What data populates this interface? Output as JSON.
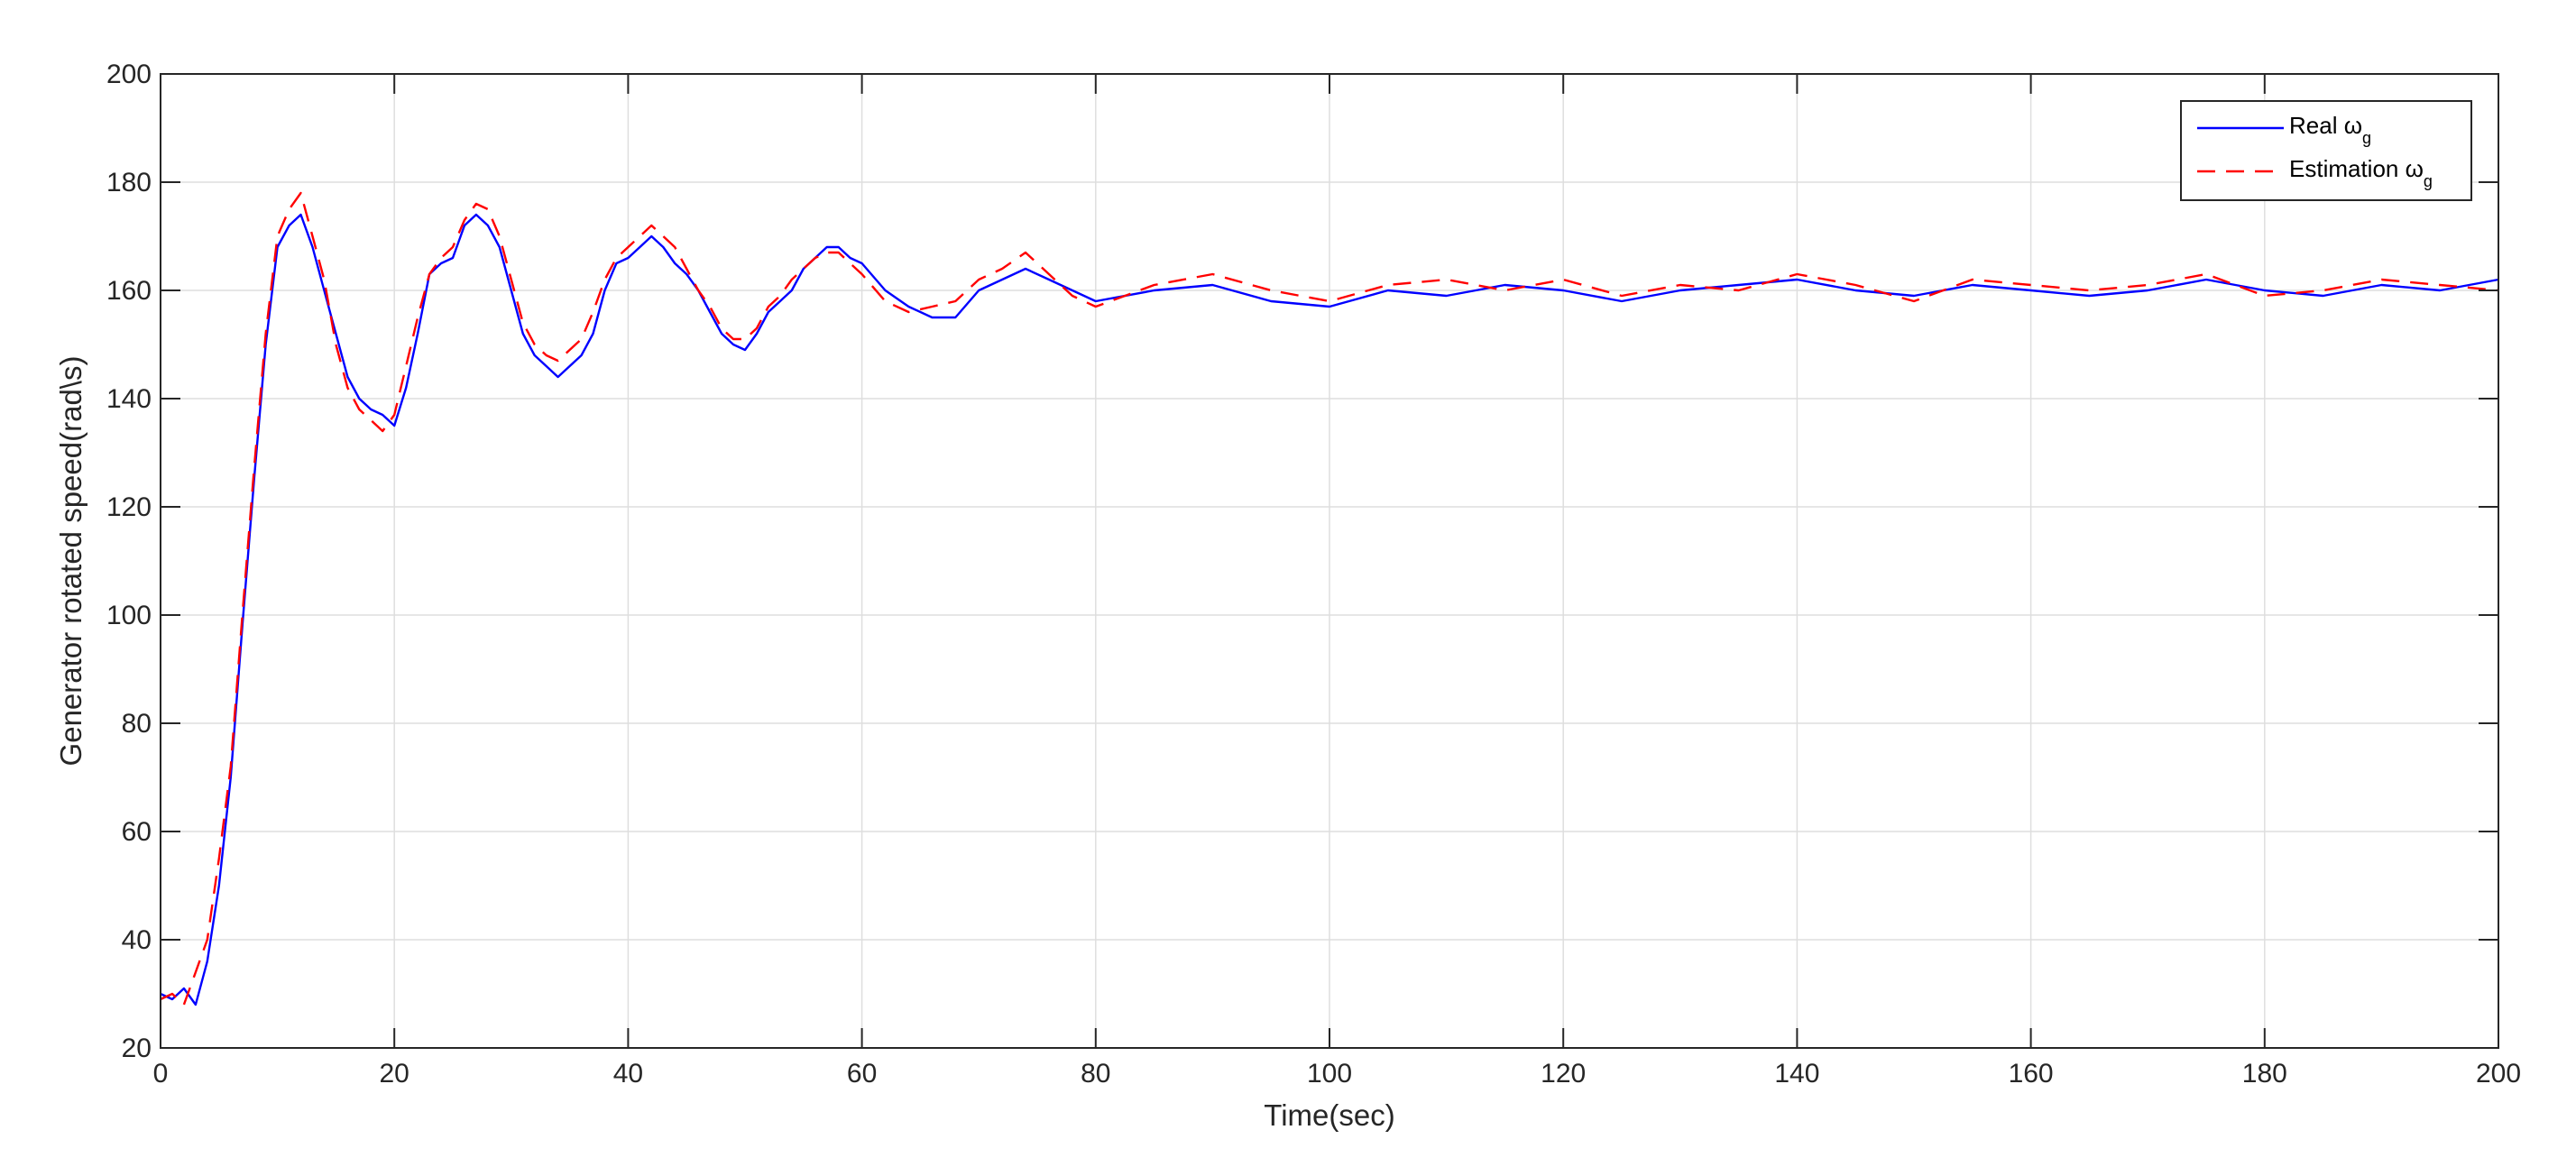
{
  "chart_data": {
    "type": "line",
    "xlabel": "Time(sec)",
    "ylabel": "Generator rotated speed(rad\\s)",
    "xlim": [
      0,
      200
    ],
    "ylim": [
      20,
      200
    ],
    "xticks": [
      0,
      20,
      40,
      60,
      80,
      100,
      120,
      140,
      160,
      180,
      200
    ],
    "yticks": [
      20,
      40,
      60,
      80,
      100,
      120,
      140,
      160,
      180,
      200
    ],
    "grid": true,
    "legend_position": "top-right",
    "series": [
      {
        "name": "Real ωg",
        "legend_main": "Real ω",
        "legend_sub": "g",
        "color": "#0000ff",
        "style": "solid",
        "x": [
          0,
          1,
          2,
          3,
          4,
          5,
          6,
          7,
          8,
          9,
          10,
          11,
          12,
          13,
          14,
          15,
          16,
          17,
          18,
          19,
          20,
          21,
          22,
          23,
          24,
          25,
          26,
          27,
          28,
          29,
          30,
          31,
          32,
          33,
          34,
          35,
          36,
          37,
          38,
          39,
          40,
          41,
          42,
          43,
          44,
          45,
          46,
          47,
          48,
          49,
          50,
          51,
          52,
          53,
          54,
          55,
          56,
          57,
          58,
          59,
          60,
          62,
          64,
          66,
          68,
          70,
          72,
          74,
          76,
          78,
          80,
          85,
          90,
          95,
          100,
          105,
          110,
          115,
          120,
          125,
          130,
          135,
          140,
          145,
          150,
          155,
          160,
          165,
          170,
          175,
          180,
          185,
          190,
          195,
          200
        ],
        "y": [
          30,
          29,
          31,
          28,
          36,
          50,
          70,
          98,
          125,
          150,
          168,
          172,
          174,
          168,
          160,
          152,
          144,
          140,
          138,
          137,
          135,
          142,
          152,
          163,
          165,
          166,
          172,
          174,
          172,
          168,
          160,
          152,
          148,
          146,
          144,
          146,
          148,
          152,
          160,
          165,
          166,
          168,
          170,
          168,
          165,
          163,
          160,
          156,
          152,
          150,
          149,
          152,
          156,
          158,
          160,
          164,
          166,
          168,
          168,
          166,
          165,
          160,
          157,
          155,
          155,
          160,
          162,
          164,
          162,
          160,
          158,
          160,
          161,
          158,
          157,
          160,
          159,
          161,
          160,
          158,
          160,
          161,
          162,
          160,
          159,
          161,
          160,
          159,
          160,
          162,
          160,
          159,
          161,
          160,
          162
        ]
      },
      {
        "name": "Estimation ωg",
        "legend_main": "Estimation ω",
        "legend_sub": "g",
        "color": "#ff0000",
        "style": "dashed",
        "x": [
          0,
          1,
          2,
          3,
          4,
          5,
          6,
          7,
          8,
          9,
          10,
          11,
          12,
          13,
          14,
          15,
          16,
          17,
          18,
          19,
          20,
          21,
          22,
          23,
          24,
          25,
          26,
          27,
          28,
          29,
          30,
          31,
          32,
          33,
          34,
          35,
          36,
          37,
          38,
          39,
          40,
          41,
          42,
          43,
          44,
          45,
          46,
          47,
          48,
          49,
          50,
          51,
          52,
          53,
          54,
          55,
          56,
          57,
          58,
          59,
          60,
          62,
          64,
          66,
          68,
          70,
          72,
          74,
          76,
          78,
          80,
          85,
          90,
          95,
          100,
          105,
          110,
          115,
          120,
          125,
          130,
          135,
          140,
          145,
          150,
          155,
          160,
          165,
          170,
          175,
          180,
          185,
          190,
          195,
          200
        ],
        "y": [
          29,
          30,
          28,
          34,
          40,
          55,
          72,
          100,
          127,
          152,
          170,
          175,
          178,
          170,
          162,
          150,
          142,
          138,
          136,
          134,
          137,
          146,
          155,
          163,
          166,
          168,
          173,
          176,
          175,
          170,
          162,
          154,
          150,
          148,
          147,
          149,
          151,
          156,
          162,
          166,
          168,
          170,
          172,
          170,
          168,
          164,
          160,
          157,
          153,
          151,
          151,
          153,
          157,
          159,
          162,
          164,
          166,
          167,
          167,
          165,
          163,
          158,
          156,
          157,
          158,
          162,
          164,
          167,
          163,
          159,
          157,
          161,
          163,
          160,
          158,
          161,
          162,
          160,
          162,
          159,
          161,
          160,
          163,
          161,
          158,
          162,
          161,
          160,
          161,
          163,
          159,
          160,
          162,
          161,
          160
        ]
      }
    ]
  }
}
